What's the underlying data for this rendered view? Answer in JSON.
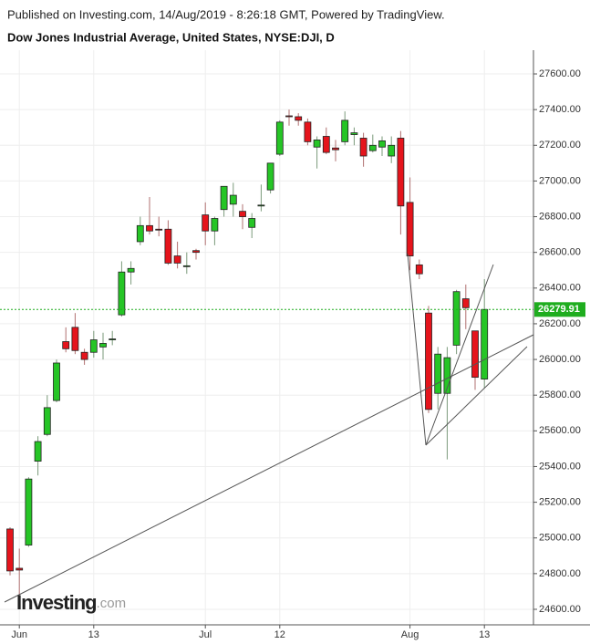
{
  "chart_data": {
    "type": "candlestick",
    "title": "Published on Investing.com, 14/Aug/2019 - 8:26:18 GMT, Powered by TradingView.",
    "subtitle": "Dow Jones Industrial Average, United States, NYSE:DJI, D",
    "brand": "Investing",
    "brand_suffix": ".com",
    "categories": [
      null,
      "Jun",
      null,
      null,
      null,
      null,
      null,
      null,
      null,
      "13",
      null,
      null,
      null,
      null,
      null,
      null,
      null,
      null,
      null,
      null,
      null,
      "Jul",
      null,
      null,
      null,
      null,
      null,
      null,
      null,
      "12",
      null,
      null,
      null,
      null,
      null,
      null,
      null,
      null,
      null,
      null,
      null,
      null,
      null,
      "Aug",
      null,
      null,
      null,
      null,
      null,
      null,
      null,
      "13"
    ],
    "open": [
      25050,
      24830,
      24960,
      25430,
      25580,
      25770,
      26100,
      26180,
      26040,
      26040,
      26070,
      26110,
      26250,
      26490,
      26660,
      26750,
      26730,
      26730,
      26580,
      26520,
      26610,
      26810,
      26720,
      26840,
      26870,
      26830,
      26740,
      26860,
      26950,
      27150,
      27365,
      27360,
      27330,
      27190,
      27250,
      27185,
      27220,
      27260,
      27240,
      27170,
      27190,
      27140,
      27240,
      26880,
      26530,
      26260,
      25810,
      25810,
      26080,
      26340,
      26160,
      25890
    ],
    "high": [
      25060,
      24940,
      25340,
      25570,
      25800,
      26000,
      26180,
      26260,
      26060,
      26160,
      26150,
      26160,
      26550,
      26550,
      26800,
      26910,
      26800,
      26780,
      26660,
      26600,
      26620,
      26880,
      26800,
      26970,
      26990,
      26870,
      26820,
      26980,
      27100,
      27340,
      27400,
      27380,
      27350,
      27250,
      27300,
      27230,
      27390,
      27300,
      27270,
      27260,
      27250,
      27250,
      27280,
      27020,
      26560,
      26300,
      26070,
      26070,
      26390,
      26420,
      26160,
      26450
    ],
    "low": [
      24790,
      24680,
      24950,
      25350,
      25570,
      25760,
      26040,
      26030,
      25970,
      26010,
      26000,
      26080,
      26240,
      26420,
      26640,
      26700,
      26690,
      26530,
      26510,
      26480,
      26560,
      26640,
      26640,
      26800,
      26800,
      26730,
      26680,
      26830,
      26930,
      27140,
      27310,
      27310,
      27200,
      27070,
      27150,
      27110,
      27200,
      27200,
      27080,
      27160,
      27140,
      27100,
      26700,
      26500,
      26450,
      25700,
      25720,
      25440,
      26030,
      26170,
      25830,
      25840
    ],
    "close": [
      24815,
      24820,
      25330,
      25540,
      25730,
      25980,
      26060,
      26050,
      26000,
      26110,
      26090,
      26115,
      26490,
      26510,
      26750,
      26720,
      26725,
      26540,
      26540,
      26525,
      26600,
      26720,
      26790,
      26970,
      26920,
      26800,
      26790,
      26865,
      27100,
      27330,
      27360,
      27340,
      27220,
      27230,
      27160,
      27175,
      27340,
      27270,
      27140,
      27200,
      27225,
      27200,
      26860,
      26580,
      26480,
      25720,
      26030,
      26010,
      26380,
      26290,
      25900,
      26280
    ],
    "up_color": "#26c526",
    "down_color": "#e5141c",
    "last_price": 26279.91,
    "last_price_color": "#1fad1f",
    "ylim": [
      24513,
      27733
    ],
    "yticks": [
      {
        "value": 24600,
        "label": "24600.00"
      },
      {
        "value": 24800,
        "label": "24800.00"
      },
      {
        "value": 25000,
        "label": "25000.00"
      },
      {
        "value": 25200,
        "label": "25200.00"
      },
      {
        "value": 25400,
        "label": "25400.00"
      },
      {
        "value": 25600,
        "label": "25600.00"
      },
      {
        "value": 25800,
        "label": "25800.00"
      },
      {
        "value": 26000,
        "label": "26000.00"
      },
      {
        "value": 26200,
        "label": "26200.00"
      },
      {
        "value": 26400,
        "label": "26400.00"
      },
      {
        "value": 26600,
        "label": "26600.00"
      },
      {
        "value": 26800,
        "label": "26800.00"
      },
      {
        "value": 27000,
        "label": "27000.00"
      },
      {
        "value": 27200,
        "label": "27200.00"
      },
      {
        "value": 27400,
        "label": "27400.00"
      },
      {
        "value": 27600,
        "label": "27600.00"
      }
    ],
    "grid": true
  }
}
